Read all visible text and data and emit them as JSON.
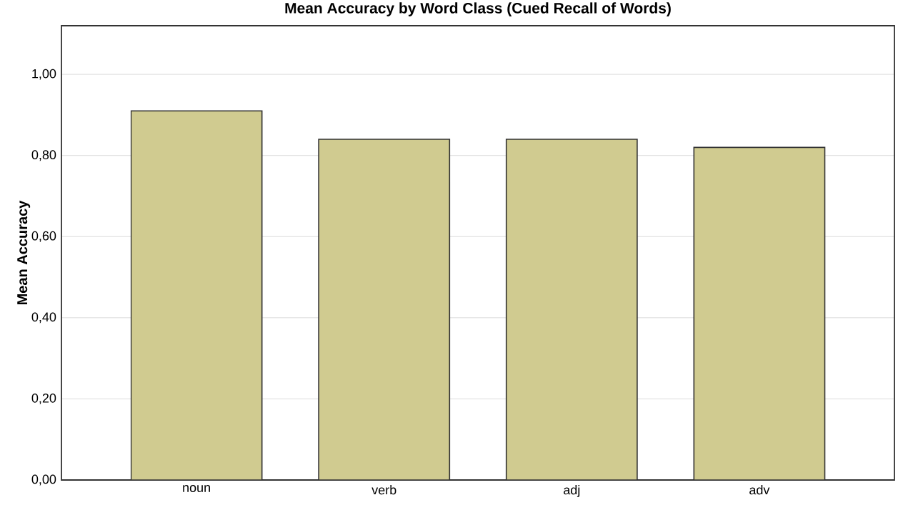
{
  "chart_data": {
    "type": "bar",
    "title": "Mean Accuracy by Word Class (Cued Recall of Words)",
    "ylabel": "Mean Accuracy",
    "categories": [
      "noun",
      "verb",
      "adj",
      "adv"
    ],
    "values": [
      0.91,
      0.84,
      0.84,
      0.82
    ],
    "color": "#d0cb90",
    "ylim": [
      0,
      1.12
    ],
    "yticks": [
      {
        "value": 0,
        "label": "0,00"
      },
      {
        "value": 0.2,
        "label": "0,20"
      },
      {
        "value": 0.4,
        "label": "0,40"
      },
      {
        "value": 0.6,
        "label": "0,60"
      },
      {
        "value": 0.8,
        "label": "0,80"
      },
      {
        "value": 1.0,
        "label": "1,00"
      }
    ],
    "grid": "y"
  }
}
